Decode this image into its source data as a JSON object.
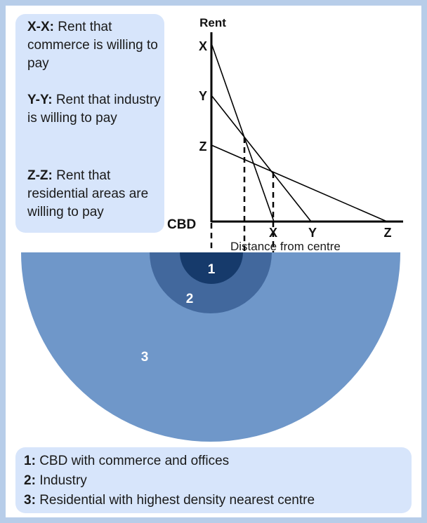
{
  "rent_key": [
    {
      "code": "X-X:",
      "text": "Rent that commerce is willing to pay"
    },
    {
      "code": "Y-Y:",
      "text": "Rent that industry is willing to pay"
    },
    {
      "code": "Z-Z:",
      "text": "Rent that residential areas are willing to pay"
    }
  ],
  "graph": {
    "y_axis_label": "Rent",
    "x_axis_label": "Distance from centre",
    "origin_label": "CBD",
    "y_ticks": [
      "X",
      "Y",
      "Z"
    ],
    "x_ticks": [
      "X",
      "Y",
      "Z"
    ]
  },
  "zones": [
    "1",
    "2",
    "3"
  ],
  "zone_key": [
    {
      "code": "1:",
      "text": "CBD with commerce and offices"
    },
    {
      "code": "2:",
      "text": "Industry"
    },
    {
      "code": "3:",
      "text": "Residential with highest density nearest centre"
    }
  ],
  "colors": {
    "zone1": "#163a6b",
    "zone2": "#42689d",
    "zone3": "#6f97c9",
    "panel": "#d7e5fb",
    "border": "#b7cde9"
  }
}
